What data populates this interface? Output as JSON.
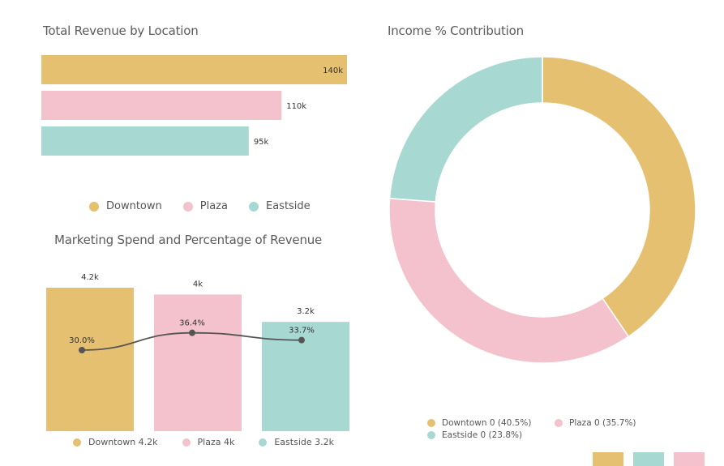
{
  "colors": {
    "downtown": "#e6c071",
    "plaza": "#f3c2cc",
    "eastside": "#a7d8d2",
    "line": "#555555",
    "title_text": "#5b5b5b"
  },
  "chart_data": [
    {
      "type": "bar",
      "orientation": "horizontal",
      "title": "Total Revenue by Location",
      "categories": [
        "Downtown",
        "Plaza",
        "Eastside"
      ],
      "values": [
        140,
        110,
        95
      ],
      "value_labels": [
        "140k",
        "110k",
        "95k"
      ],
      "unit": "k",
      "xlim": [
        0,
        140
      ],
      "grid": false,
      "legend": {
        "position": "bottom",
        "entries": [
          "Downtown",
          "Plaza",
          "Eastside"
        ]
      }
    },
    {
      "type": "pie",
      "variant": "donut",
      "title": "Income % Contribution",
      "categories": [
        "Downtown",
        "Plaza",
        "Eastside"
      ],
      "values": [
        40.5,
        35.7,
        23.8
      ],
      "legend": {
        "position": "bottom",
        "entries": [
          "Downtown 0 (40.5%)",
          "Plaza 0 (35.7%)",
          "Eastside 0 (23.8%)"
        ]
      }
    },
    {
      "type": "bar",
      "title": "Marketing Spend and Percentage of Revenue",
      "categories": [
        "Downtown",
        "Plaza",
        "Eastside"
      ],
      "series": [
        {
          "type": "bar",
          "values": [
            4.2,
            4.0,
            3.2
          ],
          "value_labels": [
            "4.2k",
            "4k",
            "3.2k"
          ]
        },
        {
          "type": "line",
          "values": [
            30.0,
            36.4,
            33.7
          ],
          "value_labels": [
            "30.0%",
            "36.4%",
            "33.7%"
          ]
        }
      ],
      "bar_ylim": [
        0,
        4.2
      ],
      "line_ylim": [
        0,
        45
      ],
      "grid": false,
      "legend": {
        "position": "bottom",
        "entries": [
          "Downtown 4.2k",
          "Plaza 4k",
          "Eastside 3.2k"
        ]
      }
    }
  ]
}
